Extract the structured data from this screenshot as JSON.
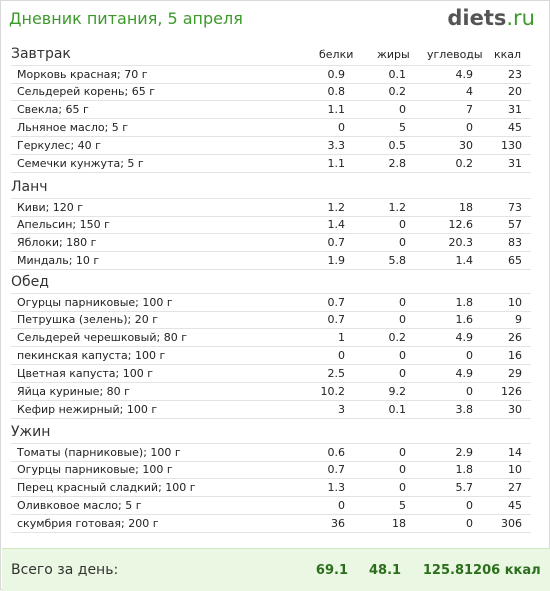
{
  "header": {
    "title": "Дневник питания, 5 апреля",
    "logo_main": "diets",
    "logo_tld": ".ru"
  },
  "columns": [
    "белки",
    "жиры",
    "углеводы",
    "ккал"
  ],
  "sections": [
    {
      "name": "Завтрак",
      "rows": [
        [
          "Морковь красная; 70 г",
          "0.9",
          "0.1",
          "4.9",
          "23"
        ],
        [
          "Сельдерей корень; 65 г",
          "0.8",
          "0.2",
          "4",
          "20"
        ],
        [
          "Свекла; 65 г",
          "1.1",
          "0",
          "7",
          "31"
        ],
        [
          "Льняное масло; 5 г",
          "0",
          "5",
          "0",
          "45"
        ],
        [
          "Геркулес; 40 г",
          "3.3",
          "0.5",
          "30",
          "130"
        ],
        [
          "Семечки кунжута; 5 г",
          "1.1",
          "2.8",
          "0.2",
          "31"
        ]
      ]
    },
    {
      "name": "Ланч",
      "rows": [
        [
          "Киви; 120 г",
          "1.2",
          "1.2",
          "18",
          "73"
        ],
        [
          "Апельсин; 150 г",
          "1.4",
          "0",
          "12.6",
          "57"
        ],
        [
          "Яблоки; 180 г",
          "0.7",
          "0",
          "20.3",
          "83"
        ],
        [
          "Миндаль; 10 г",
          "1.9",
          "5.8",
          "1.4",
          "65"
        ]
      ]
    },
    {
      "name": "Обед",
      "rows": [
        [
          "Огурцы парниковые; 100 г",
          "0.7",
          "0",
          "1.8",
          "10"
        ],
        [
          "Петрушка (зелень); 20 г",
          "0.7",
          "0",
          "1.6",
          "9"
        ],
        [
          "Сельдерей черешковый; 80 г",
          "1",
          "0.2",
          "4.9",
          "26"
        ],
        [
          "пекинская капуста; 100 г",
          "0",
          "0",
          "0",
          "16"
        ],
        [
          "Цветная капуста; 100 г",
          "2.5",
          "0",
          "4.9",
          "29"
        ],
        [
          "Яйца куриные; 80 г",
          "10.2",
          "9.2",
          "0",
          "126"
        ],
        [
          "Кефир нежирный; 100 г",
          "3",
          "0.1",
          "3.8",
          "30"
        ]
      ]
    },
    {
      "name": "Ужин",
      "rows": [
        [
          "Томаты (парниковые); 100 г",
          "0.6",
          "0",
          "2.9",
          "14"
        ],
        [
          "Огурцы парниковые; 100 г",
          "0.7",
          "0",
          "1.8",
          "10"
        ],
        [
          "Перец красный сладкий; 100 г",
          "1.3",
          "0",
          "5.7",
          "27"
        ],
        [
          "Оливковое масло; 5 г",
          "0",
          "5",
          "0",
          "45"
        ],
        [
          "скумбрия готовая; 200 г",
          "36",
          "18",
          "0",
          "306"
        ]
      ]
    }
  ],
  "totals": {
    "label": "Всего за день:",
    "values": [
      "69.1",
      "48.1",
      "125.8",
      "1206 ккал"
    ]
  }
}
